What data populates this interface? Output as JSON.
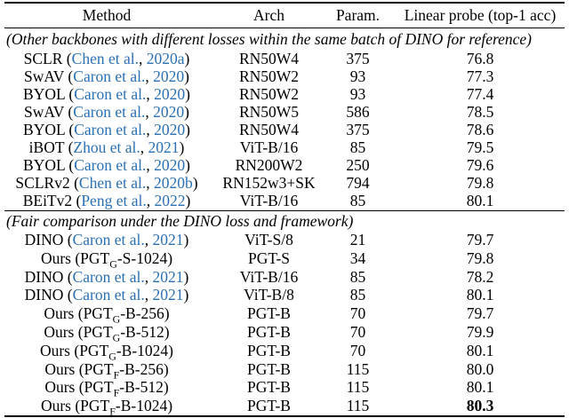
{
  "colors": {
    "citation_link": "#2b70b4",
    "text": "#000000",
    "background": "#ffffff"
  },
  "table": {
    "columns": [
      "Method",
      "Arch",
      "Param.",
      "Linear probe (top-1 acc)"
    ],
    "sections": [
      {
        "label": "(Other backbones with different losses within the same batch of DINO for reference)",
        "rows": [
          {
            "method": [
              {
                "t": "SCLR ("
              },
              {
                "t": "Chen et al.",
                "s": "cite"
              },
              {
                "t": ", "
              },
              {
                "t": "2020a",
                "s": "cite"
              },
              {
                "t": ")"
              }
            ],
            "arch": "RN50W4",
            "param": "375",
            "acc": "76.8"
          },
          {
            "method": [
              {
                "t": "SwAV ("
              },
              {
                "t": "Caron et al.",
                "s": "cite"
              },
              {
                "t": ", "
              },
              {
                "t": "2020",
                "s": "cite"
              },
              {
                "t": ")"
              }
            ],
            "arch": "RN50W2",
            "param": "93",
            "acc": "77.3"
          },
          {
            "method": [
              {
                "t": "BYOL ("
              },
              {
                "t": "Caron et al.",
                "s": "cite"
              },
              {
                "t": ", "
              },
              {
                "t": "2020",
                "s": "cite"
              },
              {
                "t": ")"
              }
            ],
            "arch": "RN50W2",
            "param": "93",
            "acc": "77.4"
          },
          {
            "method": [
              {
                "t": "SwAV ("
              },
              {
                "t": "Caron et al.",
                "s": "cite"
              },
              {
                "t": ", "
              },
              {
                "t": "2020",
                "s": "cite"
              },
              {
                "t": ")"
              }
            ],
            "arch": "RN50W5",
            "param": "586",
            "acc": "78.5"
          },
          {
            "method": [
              {
                "t": "BYOL ("
              },
              {
                "t": "Caron et al.",
                "s": "cite"
              },
              {
                "t": ", "
              },
              {
                "t": "2020",
                "s": "cite"
              },
              {
                "t": ")"
              }
            ],
            "arch": "RN50W4",
            "param": "375",
            "acc": "78.6"
          },
          {
            "method": [
              {
                "t": "iBOT ("
              },
              {
                "t": "Zhou et al.",
                "s": "cite"
              },
              {
                "t": ", "
              },
              {
                "t": "2021",
                "s": "cite"
              },
              {
                "t": ")"
              }
            ],
            "arch": "ViT-B/16",
            "param": "85",
            "acc": "79.5"
          },
          {
            "method": [
              {
                "t": "BYOL ("
              },
              {
                "t": "Caron et al.",
                "s": "cite"
              },
              {
                "t": ", "
              },
              {
                "t": "2020",
                "s": "cite"
              },
              {
                "t": ")"
              }
            ],
            "arch": "RN200W2",
            "param": "250",
            "acc": "79.6"
          },
          {
            "method": [
              {
                "t": "SCLRv2 ("
              },
              {
                "t": "Chen et al.",
                "s": "cite"
              },
              {
                "t": ", "
              },
              {
                "t": "2020b",
                "s": "cite"
              },
              {
                "t": ")"
              }
            ],
            "arch": "RN152w3+SK",
            "param": "794",
            "acc": "79.8"
          },
          {
            "method": [
              {
                "t": "BEiTv2 ("
              },
              {
                "t": "Peng et al.",
                "s": "cite"
              },
              {
                "t": ", "
              },
              {
                "t": "2022",
                "s": "cite"
              },
              {
                "t": ")"
              }
            ],
            "arch": "ViT-B/16",
            "param": "85",
            "acc": "80.1"
          }
        ]
      },
      {
        "label": "(Fair comparison under the DINO loss and framework)",
        "rows": [
          {
            "method": [
              {
                "t": "DINO ("
              },
              {
                "t": "Caron et al.",
                "s": "cite"
              },
              {
                "t": ", "
              },
              {
                "t": "2021",
                "s": "cite"
              },
              {
                "t": ")"
              }
            ],
            "arch": "ViT-S/8",
            "param": "21",
            "acc": "79.7"
          },
          {
            "method": [
              {
                "t": "Ours (PGT"
              },
              {
                "t": "G",
                "s": "sub"
              },
              {
                "t": "-S-1024)"
              }
            ],
            "arch": "PGT-S",
            "param": "34",
            "acc": "79.8"
          },
          {
            "method": [
              {
                "t": "DINO ("
              },
              {
                "t": "Caron et al.",
                "s": "cite"
              },
              {
                "t": ", "
              },
              {
                "t": "2021",
                "s": "cite"
              },
              {
                "t": ")"
              }
            ],
            "arch": "ViT-B/16",
            "param": "85",
            "acc": "78.2"
          },
          {
            "method": [
              {
                "t": "DINO ("
              },
              {
                "t": "Caron et al.",
                "s": "cite"
              },
              {
                "t": ", "
              },
              {
                "t": "2021",
                "s": "cite"
              },
              {
                "t": ")"
              }
            ],
            "arch": "ViT-B/8",
            "param": "85",
            "acc": "80.1"
          },
          {
            "method": [
              {
                "t": "Ours (PGT"
              },
              {
                "t": "G",
                "s": "sub"
              },
              {
                "t": "-B-256)"
              }
            ],
            "arch": "PGT-B",
            "param": "70",
            "acc": "79.7"
          },
          {
            "method": [
              {
                "t": "Ours (PGT"
              },
              {
                "t": "G",
                "s": "sub"
              },
              {
                "t": "-B-512)"
              }
            ],
            "arch": "PGT-B",
            "param": "70",
            "acc": "79.9"
          },
          {
            "method": [
              {
                "t": "Ours (PGT"
              },
              {
                "t": "G",
                "s": "sub"
              },
              {
                "t": "-B-1024)"
              }
            ],
            "arch": "PGT-B",
            "param": "70",
            "acc": "80.1"
          },
          {
            "method": [
              {
                "t": "Ours (PGT"
              },
              {
                "t": "F",
                "s": "sub"
              },
              {
                "t": "-B-256)"
              }
            ],
            "arch": "PGT-B",
            "param": "115",
            "acc": "80.0"
          },
          {
            "method": [
              {
                "t": "Ours (PGT"
              },
              {
                "t": "F",
                "s": "sub"
              },
              {
                "t": "-B-512)"
              }
            ],
            "arch": "PGT-B",
            "param": "115",
            "acc": "80.1"
          },
          {
            "method": [
              {
                "t": "Ours (PGT"
              },
              {
                "t": "F",
                "s": "sub"
              },
              {
                "t": "-B-1024)"
              }
            ],
            "arch": "PGT-B",
            "param": "115",
            "acc": "80.3",
            "acc_bold": true
          }
        ]
      }
    ]
  }
}
